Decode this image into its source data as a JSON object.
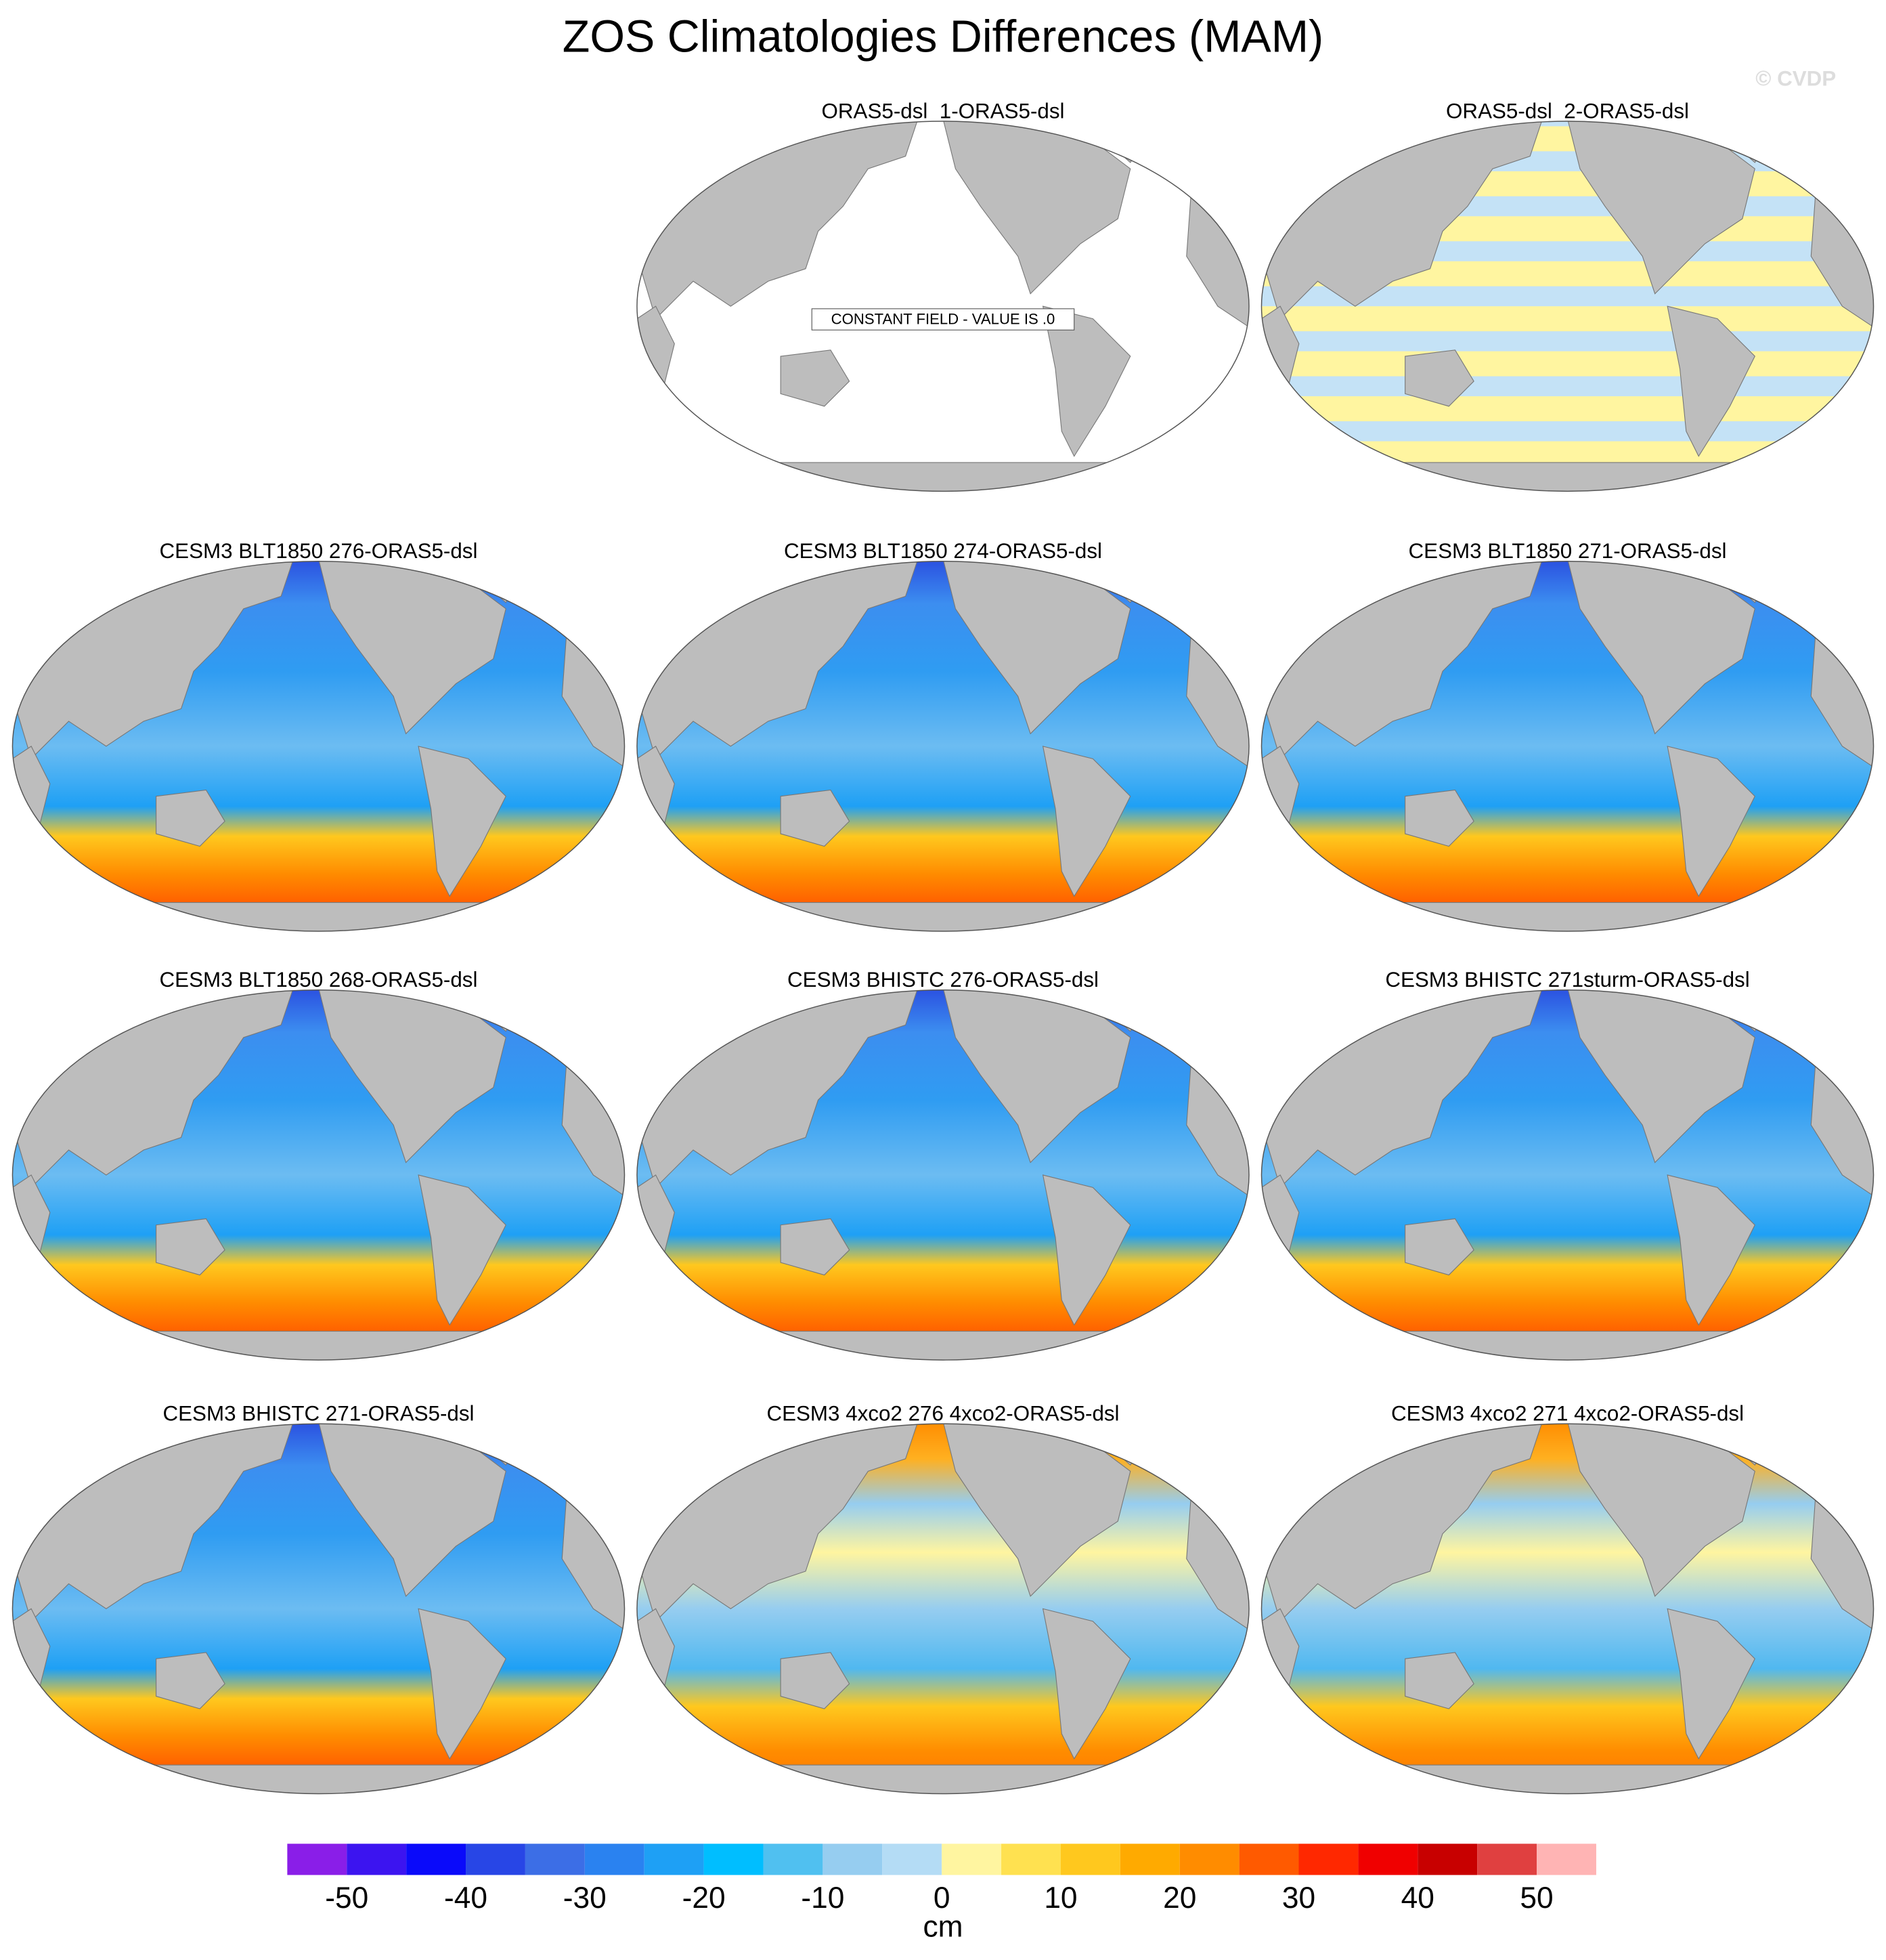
{
  "title": "ZOS Climatologies Differences (MAM)",
  "watermark": "© CVDP",
  "panels": [
    [
      {
        "title": "ORAS5-dsl_1-ORAS5-dsl",
        "annotation": "CONSTANT FIELD - VALUE IS .0"
      },
      {
        "title": "ORAS5-dsl_2-ORAS5-dsl"
      }
    ],
    [
      {
        "title": "CESM3 BLT1850 276-ORAS5-dsl"
      },
      {
        "title": "CESM3 BLT1850 274-ORAS5-dsl"
      },
      {
        "title": "CESM3 BLT1850 271-ORAS5-dsl"
      }
    ],
    [
      {
        "title": "CESM3 BLT1850 268-ORAS5-dsl"
      },
      {
        "title": "CESM3 BHISTC 276-ORAS5-dsl"
      },
      {
        "title": "CESM3 BHISTC 271sturm-ORAS5-dsl"
      }
    ],
    [
      {
        "title": "CESM3 BHISTC 271-ORAS5-dsl"
      },
      {
        "title": "CESM3 4xco2 276 4xco2-ORAS5-dsl"
      },
      {
        "title": "CESM3 4xco2 271 4xco2-ORAS5-dsl"
      }
    ]
  ],
  "colorbar": {
    "label": "cm",
    "bins": [
      -55,
      -50,
      -45,
      -40,
      -35,
      -30,
      -25,
      -20,
      -15,
      -10,
      -5,
      0,
      5,
      10,
      15,
      20,
      25,
      30,
      35,
      40,
      45,
      50,
      55
    ],
    "colors": [
      "#8a1ee8",
      "#3c14f0",
      "#0a0afa",
      "#2846e6",
      "#3c6ee6",
      "#2a82f0",
      "#1ea0f5",
      "#00beff",
      "#50c0f0",
      "#96cdf0",
      "#b4dcf5",
      "#fff5a0",
      "#ffe150",
      "#ffc81e",
      "#ffaa00",
      "#ff8c00",
      "#ff5a00",
      "#ff2800",
      "#f00000",
      "#c80000",
      "#e04040",
      "#ffb4b4"
    ],
    "ticks": [
      -50,
      -40,
      -30,
      -20,
      -10,
      0,
      10,
      20,
      30,
      40,
      50
    ]
  }
}
